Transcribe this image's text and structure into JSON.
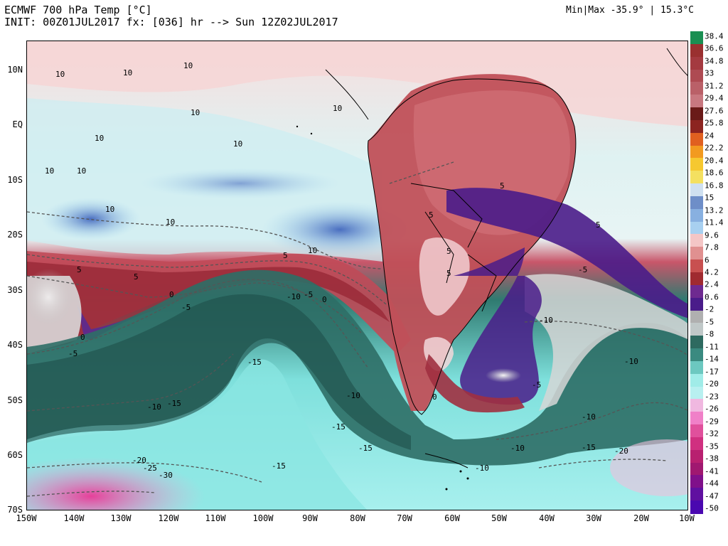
{
  "header": {
    "title": "ECMWF 700 hPa Temp [°C]",
    "init": "INIT: 00Z01JUL2017 fx: [036] hr --> Sun 12Z02JUL2017",
    "minmax": "Min|Max -35.9° | 15.3°C"
  },
  "axes": {
    "lat_labels": [
      "10N",
      "EQ",
      "10S",
      "20S",
      "30S",
      "40S",
      "50S",
      "60S",
      "70S"
    ],
    "lon_labels": [
      "150W",
      "140W",
      "130W",
      "120W",
      "110W",
      "100W",
      "90W",
      "80W",
      "70W",
      "60W",
      "50W",
      "40W",
      "30W",
      "20W",
      "10W"
    ]
  },
  "colorbar": {
    "labels": [
      "38.4",
      "36.6",
      "34.8",
      "33",
      "31.2",
      "29.4",
      "27.6",
      "25.8",
      "24",
      "22.2",
      "20.4",
      "18.6",
      "16.8",
      "15",
      "13.2",
      "11.4",
      "9.6",
      "7.8",
      "6",
      "4.2",
      "2.4",
      "0.6",
      "-2",
      "-5",
      "-8",
      "-11",
      "-14",
      "-17",
      "-20",
      "-23",
      "-26",
      "-29",
      "-32",
      "-35",
      "-38",
      "-41",
      "-44",
      "-47",
      "-50"
    ],
    "colors": [
      "#1a8f52",
      "#9a3030",
      "#a43a40",
      "#ae4a52",
      "#ba6068",
      "#c87880",
      "#6a1a18",
      "#8c2420",
      "#e06020",
      "#f29a20",
      "#f6c830",
      "#f4e060",
      "#cfe0f0",
      "#6e8ec8",
      "#88b0e0",
      "#a8d0f0",
      "#f4c6c6",
      "#e09090",
      "#c85050",
      "#a02a30",
      "#6e2a90",
      "#4a1c8a",
      "#b0b0b0",
      "#c0c8c8",
      "#2e6a60",
      "#3a8a80",
      "#6cc8c0",
      "#a0ece8",
      "#b8f0f0",
      "#f0b8e0",
      "#f080c8",
      "#e0509c",
      "#d03080",
      "#b82070",
      "#a01870",
      "#80108a",
      "#6010a0",
      "#4a08b0"
    ]
  },
  "contour_labels": [
    "10",
    "10",
    "10",
    "10",
    "10",
    "10",
    "10",
    "10",
    "10",
    "10",
    "10",
    "10",
    "5",
    "5",
    "5",
    "5",
    "5",
    "5",
    "5",
    "5",
    "0",
    "0",
    "0",
    "0",
    "-5",
    "-5",
    "-5",
    "-5",
    "-5",
    "-10",
    "-10",
    "-10",
    "-10",
    "-10",
    "-10",
    "-10",
    "-10",
    "-15",
    "-15",
    "-15",
    "-15",
    "-15",
    "-15",
    "-20",
    "-20",
    "-25",
    "-30"
  ]
}
